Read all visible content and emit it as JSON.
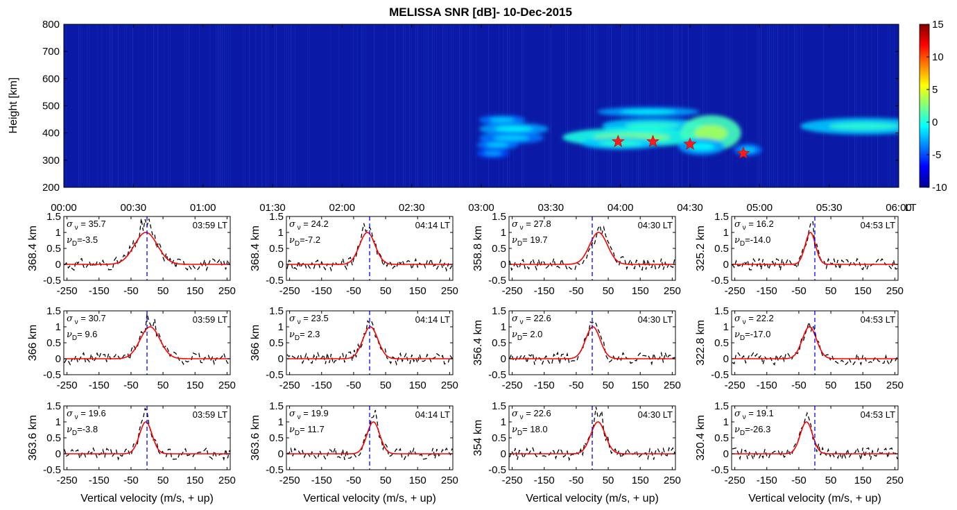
{
  "chart_data": [
    {
      "type": "heatmap",
      "title": "MELISSA SNR [dB]- 10-Dec-2015",
      "ylabel": "Height [km]",
      "ylim": [
        200,
        800
      ],
      "yticks": [
        "200",
        "300",
        "400",
        "500",
        "600",
        "700",
        "800"
      ],
      "xticks": [
        "00:00",
        "00:30",
        "01:00",
        "01:30",
        "02:00",
        "02:30",
        "03:00",
        "03:30",
        "04:00",
        "04:30",
        "05:00",
        "05:30",
        "06:00"
      ],
      "x_unit": "LT",
      "colorbar": {
        "range": [
          -10,
          15
        ],
        "ticks": [
          "15",
          "10",
          "5",
          "0",
          "-5",
          "-10"
        ]
      },
      "background_color": "#0a1aa6",
      "echo_patches": [
        {
          "time": "03:09",
          "height": 448,
          "dt": 20,
          "dh": 8,
          "snr": -4
        },
        {
          "time": "03:14",
          "height": 415,
          "dt": 30,
          "dh": 10,
          "snr": -3
        },
        {
          "time": "03:13",
          "height": 382,
          "dt": 28,
          "dh": 10,
          "snr": -4
        },
        {
          "time": "03:07",
          "height": 356,
          "dt": 18,
          "dh": 8,
          "snr": -4
        },
        {
          "time": "03:05",
          "height": 325,
          "dt": 14,
          "dh": 8,
          "snr": -5
        },
        {
          "time": "04:12",
          "height": 478,
          "dt": 44,
          "dh": 8,
          "snr": -3
        },
        {
          "time": "04:14",
          "height": 428,
          "dt": 44,
          "dh": 12,
          "snr": -2
        },
        {
          "time": "04:05",
          "height": 384,
          "dt": 60,
          "dh": 16,
          "snr": 0
        },
        {
          "time": "04:00",
          "height": 362,
          "dt": 34,
          "dh": 10,
          "snr": -2
        },
        {
          "time": "04:39",
          "height": 400,
          "dt": 26,
          "dh": 30,
          "snr": 1
        },
        {
          "time": "04:35",
          "height": 350,
          "dt": 20,
          "dh": 14,
          "snr": -3
        },
        {
          "time": "04:55",
          "height": 338,
          "dt": 12,
          "dh": 10,
          "snr": -4
        },
        {
          "time": "05:45",
          "height": 425,
          "dt": 55,
          "dh": 14,
          "snr": -2
        }
      ],
      "markers": [
        {
          "time": "03:59",
          "height": 368.4
        },
        {
          "time": "04:14",
          "height": 368.4
        },
        {
          "time": "04:30",
          "height": 358.8
        },
        {
          "time": "04:53",
          "height": 325.2
        }
      ]
    },
    {
      "type": "line",
      "xlabel": "Vertical velocity (m/s, + up)",
      "xlim": [
        -260,
        260
      ],
      "ylim": [
        -0.5,
        1.5
      ],
      "xticks": [
        "-250",
        "-150",
        "-50",
        "50",
        "150",
        "250"
      ],
      "yticks": [
        "-0.5",
        "0",
        "0.5",
        "1",
        "1.5"
      ],
      "series_styles": {
        "spectrum": "#000000",
        "fit": "#ff0000",
        "zero_line": "#0000ff"
      },
      "panels": [
        {
          "row": 0,
          "col": 0,
          "ylabel": "368.4 km",
          "time": "03:59 LT",
          "sigma": "35.7",
          "vd": "-3.5",
          "sigma_val": 35.7,
          "vd_val": -3.5
        },
        {
          "row": 0,
          "col": 1,
          "ylabel": "368.4 km",
          "time": "04:14 LT",
          "sigma": "24.2",
          "vd": "-7.2",
          "sigma_val": 24.2,
          "vd_val": -7.2
        },
        {
          "row": 0,
          "col": 2,
          "ylabel": "358.8 km",
          "time": "04:30 LT",
          "sigma": "27.8",
          "vd": "19.7",
          "sigma_val": 27.8,
          "vd_val": 19.7
        },
        {
          "row": 0,
          "col": 3,
          "ylabel": "325.2 km",
          "time": "04:53 LT",
          "sigma": "16.2",
          "vd": "-14.0",
          "sigma_val": 16.2,
          "vd_val": -14.0
        },
        {
          "row": 1,
          "col": 0,
          "ylabel": "366 km",
          "time": "03:59 LT",
          "sigma": "30.7",
          "vd": "9.6",
          "sigma_val": 30.7,
          "vd_val": 9.6
        },
        {
          "row": 1,
          "col": 1,
          "ylabel": "366 km",
          "time": "04:14 LT",
          "sigma": "23.5",
          "vd": "2.3",
          "sigma_val": 23.5,
          "vd_val": 2.3
        },
        {
          "row": 1,
          "col": 2,
          "ylabel": "356.4 km",
          "time": "04:30 LT",
          "sigma": "22.6",
          "vd": "2.0",
          "sigma_val": 22.6,
          "vd_val": 2.0
        },
        {
          "row": 1,
          "col": 3,
          "ylabel": "322.8 km",
          "time": "04:53 LT",
          "sigma": "22.2",
          "vd": "-17.0",
          "sigma_val": 22.2,
          "vd_val": -17.0
        },
        {
          "row": 2,
          "col": 0,
          "ylabel": "363.6 km",
          "time": "03:59 LT",
          "sigma": "19.6",
          "vd": "-3.8",
          "sigma_val": 19.6,
          "vd_val": -3.8
        },
        {
          "row": 2,
          "col": 1,
          "ylabel": "363.6 km",
          "time": "04:14 LT",
          "sigma": "19.9",
          "vd": "11.7",
          "sigma_val": 19.9,
          "vd_val": 11.7
        },
        {
          "row": 2,
          "col": 2,
          "ylabel": "354 km",
          "time": "04:30 LT",
          "sigma": "22.6",
          "vd": "18.0",
          "sigma_val": 22.6,
          "vd_val": 18.0
        },
        {
          "row": 2,
          "col": 3,
          "ylabel": "320.4 km",
          "time": "04:53 LT",
          "sigma": "19.1",
          "vd": "-26.3",
          "sigma_val": 19.1,
          "vd_val": -26.3
        }
      ]
    }
  ]
}
